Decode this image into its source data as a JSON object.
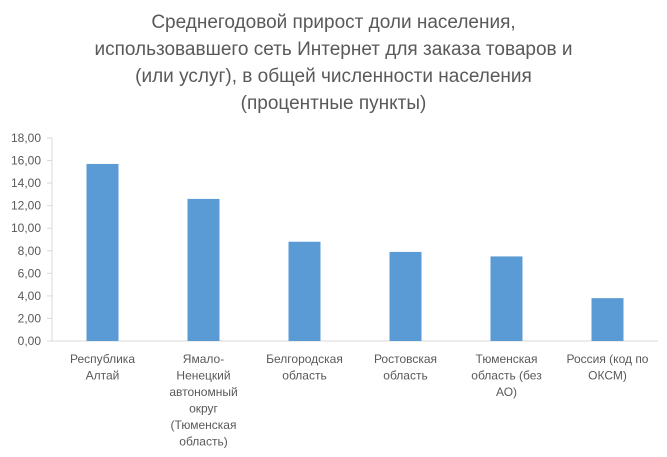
{
  "chart_data": {
    "type": "bar",
    "title_lines": [
      "Среднегодовой прирост доли населения,",
      "использовавшего сеть Интернет для заказа товаров и",
      "(или услуг), в общей численности населения",
      "(процентные пункты)"
    ],
    "categories": [
      [
        "Республика",
        "Алтай"
      ],
      [
        "Ямало-",
        "Ненецкий",
        "автономный",
        "округ",
        "(Тюменская",
        "область)"
      ],
      [
        "Белгородская",
        "область"
      ],
      [
        "Ростовская",
        "область"
      ],
      [
        "Тюменская",
        "область (без",
        "АО)"
      ],
      [
        "Россия (код по",
        "ОКСМ)"
      ]
    ],
    "values": [
      15.7,
      12.6,
      8.8,
      7.9,
      7.5,
      3.8
    ],
    "yticks": [
      "0,00",
      "2,00",
      "4,00",
      "6,00",
      "8,00",
      "10,00",
      "12,00",
      "14,00",
      "16,00",
      "18,00"
    ],
    "ylim": [
      0,
      18
    ],
    "xlabel": "",
    "ylabel": "",
    "grid": false,
    "bar_color": "#5b9bd5",
    "axis_color": "#d9d9d9"
  }
}
